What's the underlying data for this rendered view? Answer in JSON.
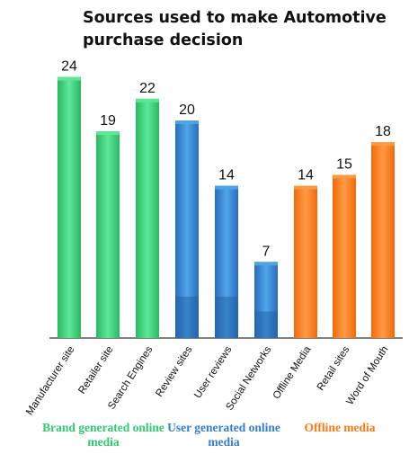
{
  "chart_data": {
    "type": "bar",
    "title": "Sources used to make Automotive purchase decision",
    "categories": [
      "Manufacturer site",
      "Retailer site",
      "Search Engines",
      "Review sites",
      "User reviews",
      "Social Networks",
      "Offline Media",
      "Retail sites",
      "Word of Mouth"
    ],
    "values": [
      24,
      19,
      22,
      20,
      14,
      7,
      14,
      15,
      18
    ],
    "groups": [
      {
        "label": "Brand generated online media",
        "color": "#2ecc71",
        "categories": [
          "Manufacturer site",
          "Retailer site",
          "Search Engines"
        ]
      },
      {
        "label": "User generated online media",
        "color": "#2f7fd4",
        "categories": [
          "Review sites",
          "User reviews",
          "Social Networks"
        ]
      },
      {
        "label": "Offline media",
        "color": "#ff7a12",
        "categories": [
          "Offline Media",
          "Retail sites",
          "Word of Mouth"
        ]
      }
    ],
    "ylim": [
      0,
      26
    ],
    "grid": false,
    "xlabel": "",
    "ylabel": ""
  }
}
